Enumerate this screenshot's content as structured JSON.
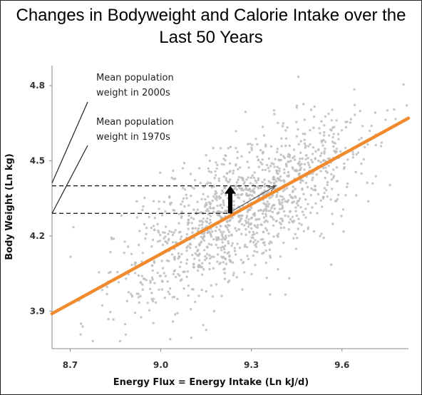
{
  "chart_data": {
    "type": "scatter",
    "title": "Changes in Bodyweight and Calorie Intake over the",
    "subtitle": "Last 50 Years",
    "xlabel": "Energy Flux = Energy Intake (Ln kJ/d)",
    "ylabel": "Body Weight (Ln kg)",
    "xlim": [
      8.64,
      9.82
    ],
    "ylim": [
      3.75,
      4.88
    ],
    "x_ticks": [
      "8.7",
      "9.0",
      "9.3",
      "9.6"
    ],
    "y_ticks": [
      "3.9",
      "4.2",
      "4.5",
      "4.8"
    ],
    "grid": false,
    "regression_line": {
      "x": [
        8.64,
        9.82
      ],
      "y": [
        3.89,
        4.67
      ],
      "color": "#f08a2c"
    },
    "reference_levels": [
      {
        "label": "Mean population weight in 2000s",
        "y": 4.4
      },
      {
        "label": "Mean population weight in 1970s",
        "y": 4.29
      }
    ],
    "scatter_points": {
      "n": 1300,
      "x_center": 9.27,
      "y_center": 4.32,
      "color": "#bdbdbd",
      "note": "dense grey cloud of individual observations along the regression line"
    },
    "arrows": [
      {
        "kind": "vertical-shift",
        "x": 9.23,
        "from": 4.29,
        "to": 4.4,
        "color": "#000000"
      },
      {
        "kind": "along-line",
        "from": [
          9.23,
          4.29
        ],
        "to": [
          9.38,
          4.4
        ],
        "color": "#555555"
      }
    ]
  }
}
